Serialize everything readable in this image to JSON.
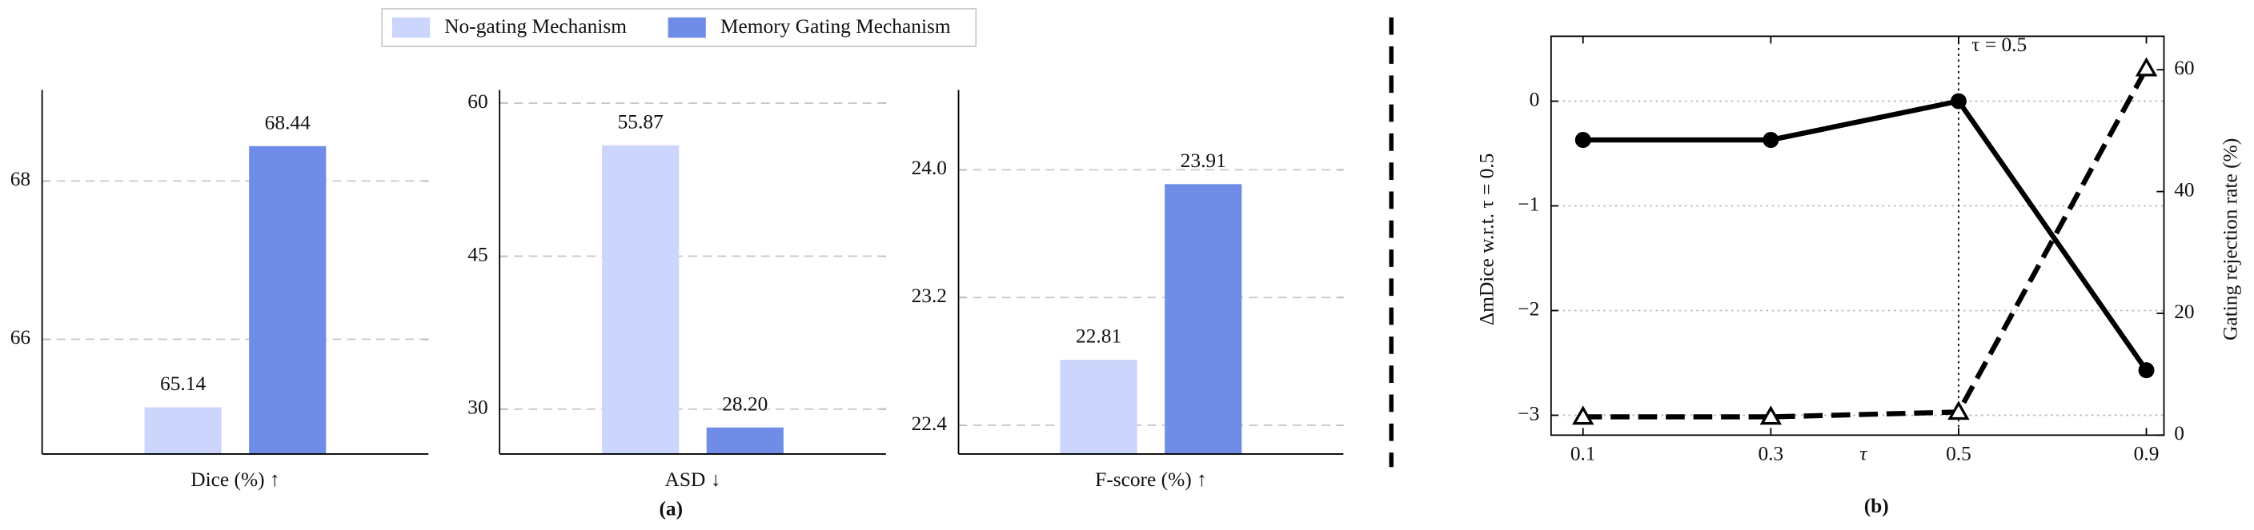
{
  "legend": {
    "entries": [
      {
        "name": "No-gating Mechanism",
        "color": "#ccd5fb"
      },
      {
        "name": "Memory Gating Mechanism",
        "color": "#6f8ce6"
      }
    ]
  },
  "panel_labels": [
    "(a)",
    "(b)"
  ],
  "chart_data": [
    {
      "type": "bar",
      "xlabel": "Dice (%) ↑",
      "values": [
        65.14,
        68.44
      ],
      "ylim": [
        64.55,
        69.15
      ],
      "yticks": [
        66,
        68
      ],
      "grid": true
    },
    {
      "type": "bar",
      "xlabel": "ASD ↓",
      "values": [
        55.87,
        28.2
      ],
      "value_labels": [
        "55.87",
        "28.20"
      ],
      "ylim": [
        25.6,
        61.3
      ],
      "yticks": [
        30,
        45,
        60
      ],
      "grid": true
    },
    {
      "type": "bar",
      "xlabel": "F-score (%) ↑",
      "values": [
        22.81,
        23.91
      ],
      "ylim": [
        22.22,
        24.5
      ],
      "yticks": [
        22.4,
        23.2,
        {
          "value": 24,
          "label": "24.0"
        }
      ],
      "grid": true
    },
    {
      "type": "line",
      "xlabel": "τ",
      "ylabel": "ΔmDice w.r.t. τ = 0.5",
      "y2label": "Gating rejection rate (%)",
      "categories": [
        "0.1",
        "0.3",
        "0.5",
        "0.9"
      ],
      "series": [
        {
          "color": "#000000",
          "line_style": "solid",
          "marker": "circle",
          "values": [
            -0.37,
            -0.37,
            0,
            -2.57
          ]
        },
        {
          "color": "#000000",
          "line_style": "dashed",
          "marker": "triangle",
          "axis": "y2",
          "values": [
            3,
            3,
            3.8,
            60.2
          ]
        }
      ],
      "ylim": [
        -3.19,
        0.62
      ],
      "yticks": [
        {
          "value": -3,
          "label": "−3"
        },
        {
          "value": -2,
          "label": "−2"
        },
        {
          "value": -1,
          "label": "−1"
        },
        0
      ],
      "y2lim": [
        0,
        65.5
      ],
      "y2ticks": [
        0,
        20,
        40,
        60
      ],
      "grid": true,
      "annotations": [
        {
          "text": "τ = 0.5",
          "x": "0.5"
        }
      ]
    }
  ]
}
